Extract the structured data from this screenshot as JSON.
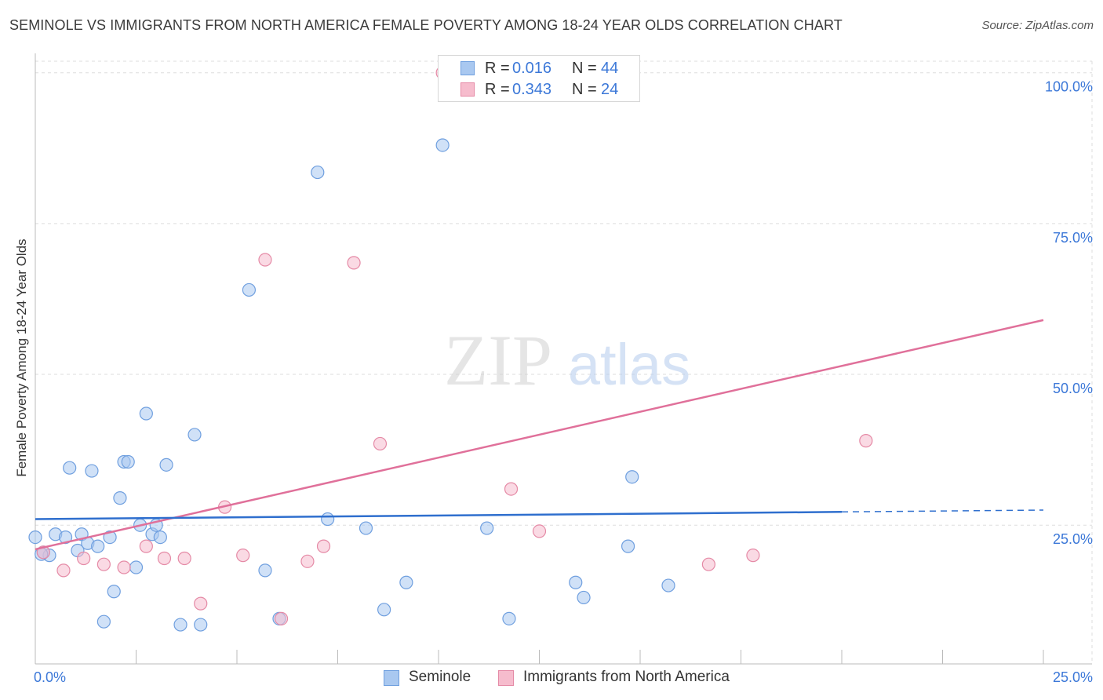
{
  "title": "SEMINOLE VS IMMIGRANTS FROM NORTH AMERICA FEMALE POVERTY AMONG 18-24 YEAR OLDS CORRELATION CHART",
  "source": "Source: ZipAtlas.com",
  "watermark": {
    "zip": "ZIP",
    "atlas": "atlas"
  },
  "legend_top": {
    "rows": [
      {
        "r_label": "R =",
        "r_value": "0.016",
        "n_label": "N =",
        "n_value": "44",
        "color": "#a9c8f0",
        "border": "#6f9fdf"
      },
      {
        "r_label": "R =",
        "r_value": "0.343",
        "n_label": "N =",
        "n_value": "24",
        "color": "#f6bccd",
        "border": "#e58aa6"
      }
    ]
  },
  "colors": {
    "seminole_fill": "#a9c8f0",
    "seminole_stroke": "#6f9fdf",
    "seminole_line": "#2f6fce",
    "immigrants_fill": "#f6bccd",
    "immigrants_stroke": "#e58aa6",
    "immigrants_line": "#e0709a",
    "tick_label": "#3c78d8",
    "grid": "#dddddd"
  },
  "chart_data": {
    "type": "scatter",
    "title": "SEMINOLE VS IMMIGRANTS FROM NORTH AMERICA FEMALE POVERTY AMONG 18-24 YEAR OLDS CORRELATION CHART",
    "xlabel": "",
    "ylabel": "Female Poverty Among 18-24 Year Olds",
    "xlim": [
      0,
      25
    ],
    "ylim": [
      2,
      104
    ],
    "x_tick_labels": [
      {
        "value": 0,
        "label": "0.0%"
      },
      {
        "value": 25,
        "label": "25.0%"
      }
    ],
    "y_tick_labels": [
      {
        "value": 25,
        "label": "25.0%"
      },
      {
        "value": 50,
        "label": "50.0%"
      },
      {
        "value": 75,
        "label": "75.0%"
      },
      {
        "value": 100,
        "label": "100.0%"
      }
    ],
    "grid": "horizontal dashed",
    "legend_position": "bottom",
    "series": [
      {
        "name": "Seminole",
        "points": [
          [
            0.0,
            23.0
          ],
          [
            0.2,
            20.5
          ],
          [
            0.35,
            20.0
          ],
          [
            0.5,
            23.5
          ],
          [
            0.75,
            23.0
          ],
          [
            0.85,
            34.5
          ],
          [
            1.05,
            20.8
          ],
          [
            1.15,
            23.5
          ],
          [
            1.3,
            22.0
          ],
          [
            1.4,
            34.0
          ],
          [
            1.55,
            21.5
          ],
          [
            1.7,
            9.0
          ],
          [
            1.85,
            23.0
          ],
          [
            1.95,
            14.0
          ],
          [
            2.1,
            29.5
          ],
          [
            2.2,
            35.5
          ],
          [
            2.3,
            35.5
          ],
          [
            2.5,
            18.0
          ],
          [
            2.6,
            25.0
          ],
          [
            2.75,
            43.5
          ],
          [
            2.9,
            23.5
          ],
          [
            3.0,
            25.0
          ],
          [
            3.1,
            23.0
          ],
          [
            3.25,
            35.0
          ],
          [
            3.6,
            8.5
          ],
          [
            3.95,
            40.0
          ],
          [
            4.1,
            8.5
          ],
          [
            5.3,
            64.0
          ],
          [
            5.7,
            17.5
          ],
          [
            6.05,
            9.5
          ],
          [
            7.0,
            83.5
          ],
          [
            7.25,
            26.0
          ],
          [
            8.2,
            24.5
          ],
          [
            8.65,
            11.0
          ],
          [
            9.2,
            15.5
          ],
          [
            10.1,
            88.0
          ],
          [
            11.2,
            24.5
          ],
          [
            11.75,
            9.5
          ],
          [
            13.4,
            15.5
          ],
          [
            13.6,
            13.0
          ],
          [
            14.7,
            21.5
          ],
          [
            14.8,
            33.0
          ],
          [
            15.7,
            15.0
          ],
          [
            0.15,
            20.2
          ]
        ],
        "trend": {
          "from": [
            0,
            26.0
          ],
          "to": [
            20,
            27.2
          ],
          "dashed_to": [
            25,
            27.5
          ]
        }
      },
      {
        "name": "Immigrants from North America",
        "points": [
          [
            0.2,
            20.5
          ],
          [
            0.7,
            17.5
          ],
          [
            1.2,
            19.5
          ],
          [
            1.7,
            18.5
          ],
          [
            2.2,
            18.0
          ],
          [
            2.75,
            21.5
          ],
          [
            3.2,
            19.5
          ],
          [
            3.7,
            19.5
          ],
          [
            4.1,
            12.0
          ],
          [
            4.7,
            28.0
          ],
          [
            5.15,
            20.0
          ],
          [
            5.7,
            69.0
          ],
          [
            6.1,
            9.5
          ],
          [
            6.75,
            19.0
          ],
          [
            7.15,
            21.5
          ],
          [
            7.9,
            68.5
          ],
          [
            8.55,
            38.5
          ],
          [
            10.1,
            100.0
          ],
          [
            11.8,
            31.0
          ],
          [
            12.5,
            24.0
          ],
          [
            14.8,
            100.0
          ],
          [
            16.7,
            18.5
          ],
          [
            17.8,
            20.0
          ],
          [
            20.6,
            39.0
          ]
        ],
        "trend": {
          "from": [
            0,
            21.0
          ],
          "to": [
            25,
            59.0
          ]
        }
      }
    ]
  },
  "legend_bottom": {
    "items": [
      {
        "label": "Seminole"
      },
      {
        "label": "Immigrants from North America"
      }
    ]
  }
}
